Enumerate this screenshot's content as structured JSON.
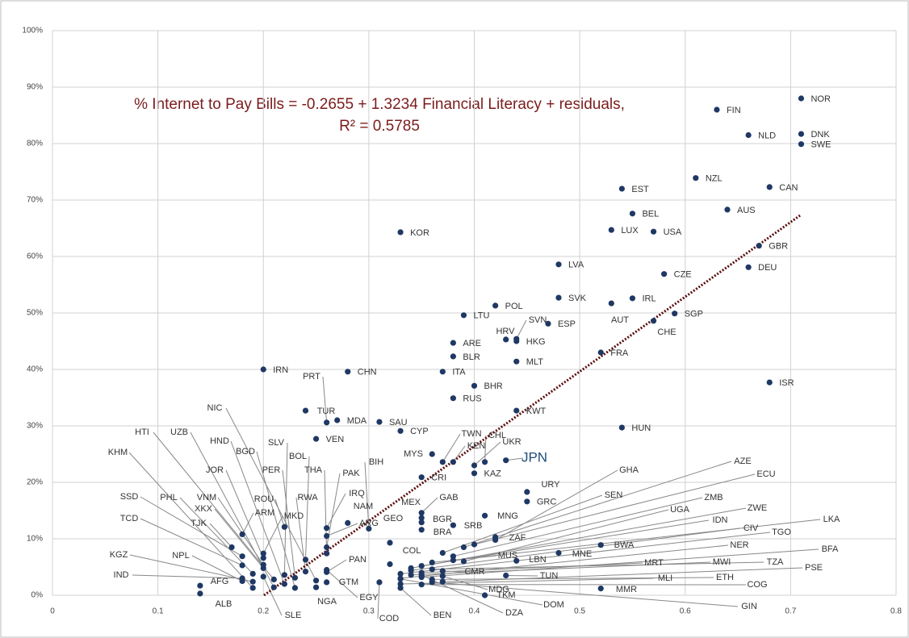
{
  "chart_data": {
    "type": "scatter",
    "annotations": [
      "% Internet to Pay Bills = -0.2655 + 1.3234 Financial Literacy + residuals,",
      "R² = 0.5785"
    ],
    "trendline": {
      "intercept": -26.55,
      "slope": 132.34
    },
    "xlim": [
      0,
      0.8
    ],
    "xticks": [
      0,
      0.1,
      0.2,
      0.3,
      0.4,
      0.5,
      0.6,
      0.7,
      0.8
    ],
    "ylim": [
      0,
      100
    ],
    "yticks": [
      {
        "value": 0,
        "label": "0%"
      },
      {
        "value": 10,
        "label": "10%"
      },
      {
        "value": 20,
        "label": "20%"
      },
      {
        "value": 30,
        "label": "30%"
      },
      {
        "value": 40,
        "label": "40%"
      },
      {
        "value": 50,
        "label": "50%"
      },
      {
        "value": 60,
        "label": "60%"
      },
      {
        "value": 70,
        "label": "70%"
      },
      {
        "value": 80,
        "label": "80%"
      },
      {
        "value": 90,
        "label": "90%"
      },
      {
        "value": 100,
        "label": "100%"
      }
    ],
    "grid": true,
    "color": "#1f3864",
    "trendline_color": "#5b0f0f",
    "points": [
      {
        "label": "NOR",
        "x": 0.71,
        "y": 88
      },
      {
        "label": "FIN",
        "x": 0.63,
        "y": 86
      },
      {
        "label": "NLD",
        "x": 0.66,
        "y": 81.5
      },
      {
        "label": "DNK",
        "x": 0.71,
        "y": 81.7
      },
      {
        "label": "SWE",
        "x": 0.71,
        "y": 79.9
      },
      {
        "label": "NZL",
        "x": 0.61,
        "y": 73.9
      },
      {
        "label": "CAN",
        "x": 0.68,
        "y": 72.3
      },
      {
        "label": "EST",
        "x": 0.54,
        "y": 72
      },
      {
        "label": "AUS",
        "x": 0.64,
        "y": 68.3
      },
      {
        "label": "BEL",
        "x": 0.55,
        "y": 67.6
      },
      {
        "label": "LUX",
        "x": 0.53,
        "y": 64.7
      },
      {
        "label": "USA",
        "x": 0.57,
        "y": 64.4
      },
      {
        "label": "KOR",
        "x": 0.33,
        "y": 64.3
      },
      {
        "label": "GBR",
        "x": 0.67,
        "y": 61.9
      },
      {
        "label": "LVA",
        "x": 0.48,
        "y": 58.6
      },
      {
        "label": "CZE",
        "x": 0.58,
        "y": 56.9
      },
      {
        "label": "DEU",
        "x": 0.66,
        "y": 58.1
      },
      {
        "label": "SVK",
        "x": 0.48,
        "y": 52.7
      },
      {
        "label": "IRL",
        "x": 0.55,
        "y": 52.6
      },
      {
        "label": "AUT",
        "x": 0.53,
        "y": 51.7
      },
      {
        "label": "POL",
        "x": 0.42,
        "y": 51.3
      },
      {
        "label": "LTU",
        "x": 0.39,
        "y": 49.6
      },
      {
        "label": "SGP",
        "x": 0.59,
        "y": 49.9
      },
      {
        "label": "CHE",
        "x": 0.57,
        "y": 48.6
      },
      {
        "label": "ESP",
        "x": 0.47,
        "y": 48.1
      },
      {
        "label": "SVN",
        "x": 0.44,
        "y": 45.4
      },
      {
        "label": "HRV",
        "x": 0.43,
        "y": 45.3
      },
      {
        "label": "HKG",
        "x": 0.44,
        "y": 45
      },
      {
        "label": "ARE",
        "x": 0.38,
        "y": 44.7
      },
      {
        "label": "FRA",
        "x": 0.52,
        "y": 43
      },
      {
        "label": "BLR",
        "x": 0.38,
        "y": 42.3
      },
      {
        "label": "MLT",
        "x": 0.44,
        "y": 41.4
      },
      {
        "label": "IRN",
        "x": 0.2,
        "y": 40
      },
      {
        "label": "CHN",
        "x": 0.28,
        "y": 39.6
      },
      {
        "label": "ITA",
        "x": 0.37,
        "y": 39.6
      },
      {
        "label": "ISR",
        "x": 0.68,
        "y": 37.7
      },
      {
        "label": "BHR",
        "x": 0.4,
        "y": 37.1
      },
      {
        "label": "RUS",
        "x": 0.38,
        "y": 34.9
      },
      {
        "label": "KWT",
        "x": 0.44,
        "y": 32.7
      },
      {
        "label": "TUR",
        "x": 0.24,
        "y": 32.7
      },
      {
        "label": "PRT",
        "x": 0.26,
        "y": 30.6
      },
      {
        "label": "MDA",
        "x": 0.27,
        "y": 31
      },
      {
        "label": "SAU",
        "x": 0.31,
        "y": 30.7
      },
      {
        "label": "HUN",
        "x": 0.54,
        "y": 29.7
      },
      {
        "label": "CYP",
        "x": 0.33,
        "y": 29.1
      },
      {
        "label": "VEN",
        "x": 0.25,
        "y": 27.7
      },
      {
        "label": "NIC",
        "x": 0.25,
        "y": 2.6
      },
      {
        "label": "MYS",
        "x": 0.36,
        "y": 25
      },
      {
        "label": "TWN",
        "x": 0.37,
        "y": 23.6
      },
      {
        "label": "KEN",
        "x": 0.38,
        "y": 23.6
      },
      {
        "label": "CHL",
        "x": 0.41,
        "y": 23.6
      },
      {
        "label": "UKR",
        "x": 0.4,
        "y": 23
      },
      {
        "label": "JPN",
        "x": 0.43,
        "y": 23.9
      },
      {
        "label": "KAZ",
        "x": 0.4,
        "y": 21.6
      },
      {
        "label": "CRI",
        "x": 0.35,
        "y": 20.9
      },
      {
        "label": "URY",
        "x": 0.45,
        "y": 18.3
      },
      {
        "label": "GRC",
        "x": 0.45,
        "y": 16.6
      },
      {
        "label": "GAB",
        "x": 0.35,
        "y": 14.6
      },
      {
        "label": "MNG",
        "x": 0.41,
        "y": 14.1
      },
      {
        "label": "MEX",
        "x": 0.35,
        "y": 13.7
      },
      {
        "label": "BGR",
        "x": 0.35,
        "y": 12.9
      },
      {
        "label": "SRB",
        "x": 0.38,
        "y": 12.4
      },
      {
        "label": "BRA",
        "x": 0.35,
        "y": 11.6
      },
      {
        "label": "ROU",
        "x": 0.22,
        "y": 12.1
      },
      {
        "label": "ZAF",
        "x": 0.42,
        "y": 10.3
      },
      {
        "label": "ALB",
        "x": 0.14,
        "y": 0.3
      },
      {
        "label": "AFG",
        "x": 0.14,
        "y": 1.7
      },
      {
        "label": "IND",
        "x": 0.18,
        "y": 3
      },
      {
        "label": "NPL",
        "x": 0.18,
        "y": 2.5
      },
      {
        "label": "KGZ",
        "x": 0.19,
        "y": 2.4
      },
      {
        "label": "TCD",
        "x": 0.18,
        "y": 5.3
      },
      {
        "label": "TJK",
        "x": 0.17,
        "y": 8.5
      },
      {
        "label": "SSD",
        "x": 0.18,
        "y": 6.9
      },
      {
        "label": "PHL",
        "x": 0.19,
        "y": 3.8
      },
      {
        "label": "VNM",
        "x": 0.2,
        "y": 5.4
      },
      {
        "label": "XKX",
        "x": 0.2,
        "y": 4.8
      },
      {
        "label": "KHM",
        "x": 0.19,
        "y": 1.3
      },
      {
        "label": "HTI",
        "x": 0.21,
        "y": 2.8
      },
      {
        "label": "UZB",
        "x": 0.21,
        "y": 1.4
      },
      {
        "label": "HND",
        "x": 0.22,
        "y": 2
      },
      {
        "label": "BGD",
        "x": 0.23,
        "y": 1.3
      },
      {
        "label": "JOR",
        "x": 0.2,
        "y": 6.6
      },
      {
        "label": "SLV",
        "x": 0.22,
        "y": 3.6
      },
      {
        "label": "MKD",
        "x": 0.2,
        "y": 7.4
      },
      {
        "label": "ARM",
        "x": 0.18,
        "y": 10.8
      },
      {
        "label": "BOL",
        "x": 0.24,
        "y": 6.3
      },
      {
        "label": "PER",
        "x": 0.23,
        "y": 3.1
      },
      {
        "label": "RWA",
        "x": 0.24,
        "y": 4.2
      },
      {
        "label": "THA",
        "x": 0.26,
        "y": 7.4
      },
      {
        "label": "PAK",
        "x": 0.26,
        "y": 8.5
      },
      {
        "label": "BIH",
        "x": 0.3,
        "y": 11.8
      },
      {
        "label": "IRQ",
        "x": 0.26,
        "y": 11.9
      },
      {
        "label": "NAM",
        "x": 0.28,
        "y": 12.8
      },
      {
        "label": "ARG",
        "x": 0.26,
        "y": 10.5
      },
      {
        "label": "GEO",
        "x": 0.32,
        "y": 9.3
      },
      {
        "label": "PAN",
        "x": 0.26,
        "y": 4.1
      },
      {
        "label": "GTM",
        "x": 0.26,
        "y": 2.3
      },
      {
        "label": "NGA",
        "x": 0.25,
        "y": 1.4
      },
      {
        "label": "EGY",
        "x": 0.26,
        "y": 4.5
      },
      {
        "label": "SLE",
        "x": 0.2,
        "y": 3.3
      },
      {
        "label": "COL",
        "x": 0.32,
        "y": 5.5
      },
      {
        "label": "COD",
        "x": 0.31,
        "y": 2.3
      },
      {
        "label": "BEN",
        "x": 0.33,
        "y": 1.3
      },
      {
        "label": "MDG",
        "x": 0.37,
        "y": 3.4
      },
      {
        "label": "DZA",
        "x": 0.35,
        "y": 3.6
      },
      {
        "label": "DOM",
        "x": 0.33,
        "y": 2.9
      },
      {
        "label": "TKM",
        "x": 0.41,
        "y": 0
      },
      {
        "label": "CMR",
        "x": 0.37,
        "y": 4.3
      },
      {
        "label": "MUS",
        "x": 0.38,
        "y": 6.2
      },
      {
        "label": "LBN",
        "x": 0.44,
        "y": 6.1
      },
      {
        "label": "TUN",
        "x": 0.43,
        "y": 3.5
      },
      {
        "label": "MNE",
        "x": 0.48,
        "y": 7.5
      },
      {
        "label": "BWA",
        "x": 0.52,
        "y": 8.9
      },
      {
        "label": "MMR",
        "x": 0.52,
        "y": 1.2
      },
      {
        "label": "GHA",
        "x": 0.42,
        "y": 9.8
      },
      {
        "label": "AZE",
        "x": 0.39,
        "y": 8.5
      },
      {
        "label": "ECU",
        "x": 0.4,
        "y": 9
      },
      {
        "label": "SEN",
        "x": 0.37,
        "y": 7.5
      },
      {
        "label": "ZMB",
        "x": 0.38,
        "y": 6.9
      },
      {
        "label": "UGA",
        "x": 0.39,
        "y": 6
      },
      {
        "label": "IDN",
        "x": 0.35,
        "y": 5.2
      },
      {
        "label": "ZWE",
        "x": 0.34,
        "y": 4.8
      },
      {
        "label": "CIV",
        "x": 0.34,
        "y": 4.4
      },
      {
        "label": "TGO",
        "x": 0.33,
        "y": 3.8
      },
      {
        "label": "LKA",
        "x": 0.36,
        "y": 5.8
      },
      {
        "label": "NER",
        "x": 0.33,
        "y": 3
      },
      {
        "label": "BFA",
        "x": 0.35,
        "y": 3.2
      },
      {
        "label": "TZA",
        "x": 0.36,
        "y": 4.6
      },
      {
        "label": "MWI",
        "x": 0.34,
        "y": 3.6
      },
      {
        "label": "MRT",
        "x": 0.35,
        "y": 4
      },
      {
        "label": "PSE",
        "x": 0.37,
        "y": 2.4
      },
      {
        "label": "MLI",
        "x": 0.33,
        "y": 2
      },
      {
        "label": "ETH",
        "x": 0.36,
        "y": 2.8
      },
      {
        "label": "COG",
        "x": 0.35,
        "y": 1.9
      },
      {
        "label": "GIN",
        "x": 0.36,
        "y": 2.3
      }
    ]
  }
}
